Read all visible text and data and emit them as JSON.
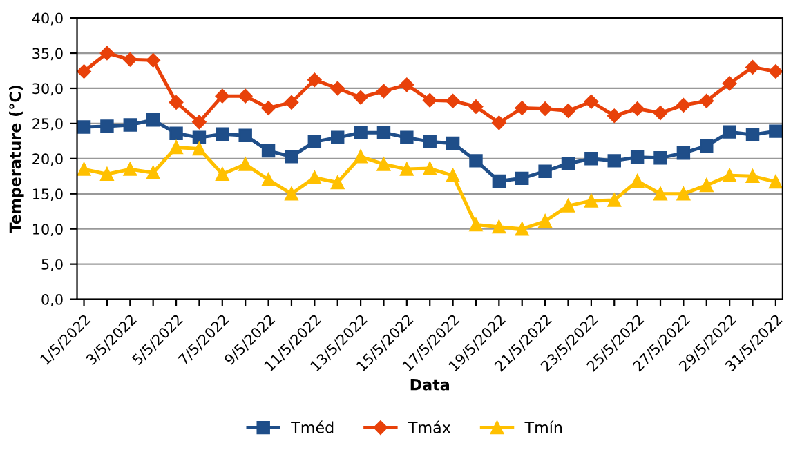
{
  "chart_data": {
    "type": "line",
    "xlabel": "Data",
    "ylabel": "Temperature (°C)",
    "categories": [
      "1/5/2022",
      null,
      "3/5/2022",
      null,
      "5/5/2022",
      null,
      "7/5/2022",
      null,
      "9/5/2022",
      null,
      "11/5/2022",
      null,
      "13/5/2022",
      null,
      "15/5/2022",
      null,
      "17/5/2022",
      null,
      "19/5/2022",
      null,
      "21/5/2022",
      null,
      "23/5/2022",
      null,
      "25/5/2022",
      null,
      "27/5/2022",
      null,
      "29/5/2022",
      null,
      "31/5/2022"
    ],
    "series": [
      {
        "name": "Tméd",
        "color": "#1f4e89",
        "marker": "square",
        "values": [
          24.5,
          24.6,
          24.8,
          25.5,
          23.6,
          23.0,
          23.5,
          23.3,
          21.1,
          20.3,
          22.4,
          23.0,
          23.7,
          23.7,
          23.0,
          22.4,
          22.2,
          19.7,
          16.8,
          17.2,
          18.2,
          19.3,
          20.0,
          19.7,
          20.2,
          20.1,
          20.8,
          21.8,
          23.8,
          23.4,
          23.9
        ]
      },
      {
        "name": "Tmáx",
        "color": "#e8410a",
        "marker": "diamond",
        "values": [
          32.4,
          35.0,
          34.1,
          34.0,
          28.0,
          25.2,
          28.9,
          28.9,
          27.2,
          28.0,
          31.2,
          30.0,
          28.7,
          29.6,
          30.5,
          28.3,
          28.2,
          27.4,
          25.1,
          27.2,
          27.1,
          26.8,
          28.1,
          26.1,
          27.1,
          26.5,
          27.6,
          28.2,
          30.7,
          33.0,
          32.4
        ]
      },
      {
        "name": "Tmín",
        "color": "#ffc000",
        "marker": "triangle",
        "values": [
          18.5,
          17.8,
          18.5,
          18.0,
          21.6,
          21.4,
          17.8,
          19.2,
          17.0,
          15.0,
          17.3,
          16.6,
          20.3,
          19.2,
          18.5,
          18.6,
          17.6,
          10.6,
          10.3,
          10.0,
          11.1,
          13.3,
          14.0,
          14.1,
          16.8,
          15.0,
          15.0,
          16.2,
          17.6,
          17.5,
          16.7
        ]
      }
    ],
    "ylim": [
      0,
      40
    ],
    "yticks": [
      {
        "value": 0,
        "label": "0,0"
      },
      {
        "value": 5,
        "label": "5,0"
      },
      {
        "value": 10,
        "label": "10,0"
      },
      {
        "value": 15,
        "label": "15,0"
      },
      {
        "value": 20,
        "label": "20,0"
      },
      {
        "value": 25,
        "label": "25,0"
      },
      {
        "value": 30,
        "label": "30,0"
      },
      {
        "value": 35,
        "label": "35,0"
      },
      {
        "value": 40,
        "label": "40,0"
      }
    ],
    "grid": "y",
    "legend": "bottom",
    "line_style": "solid"
  }
}
